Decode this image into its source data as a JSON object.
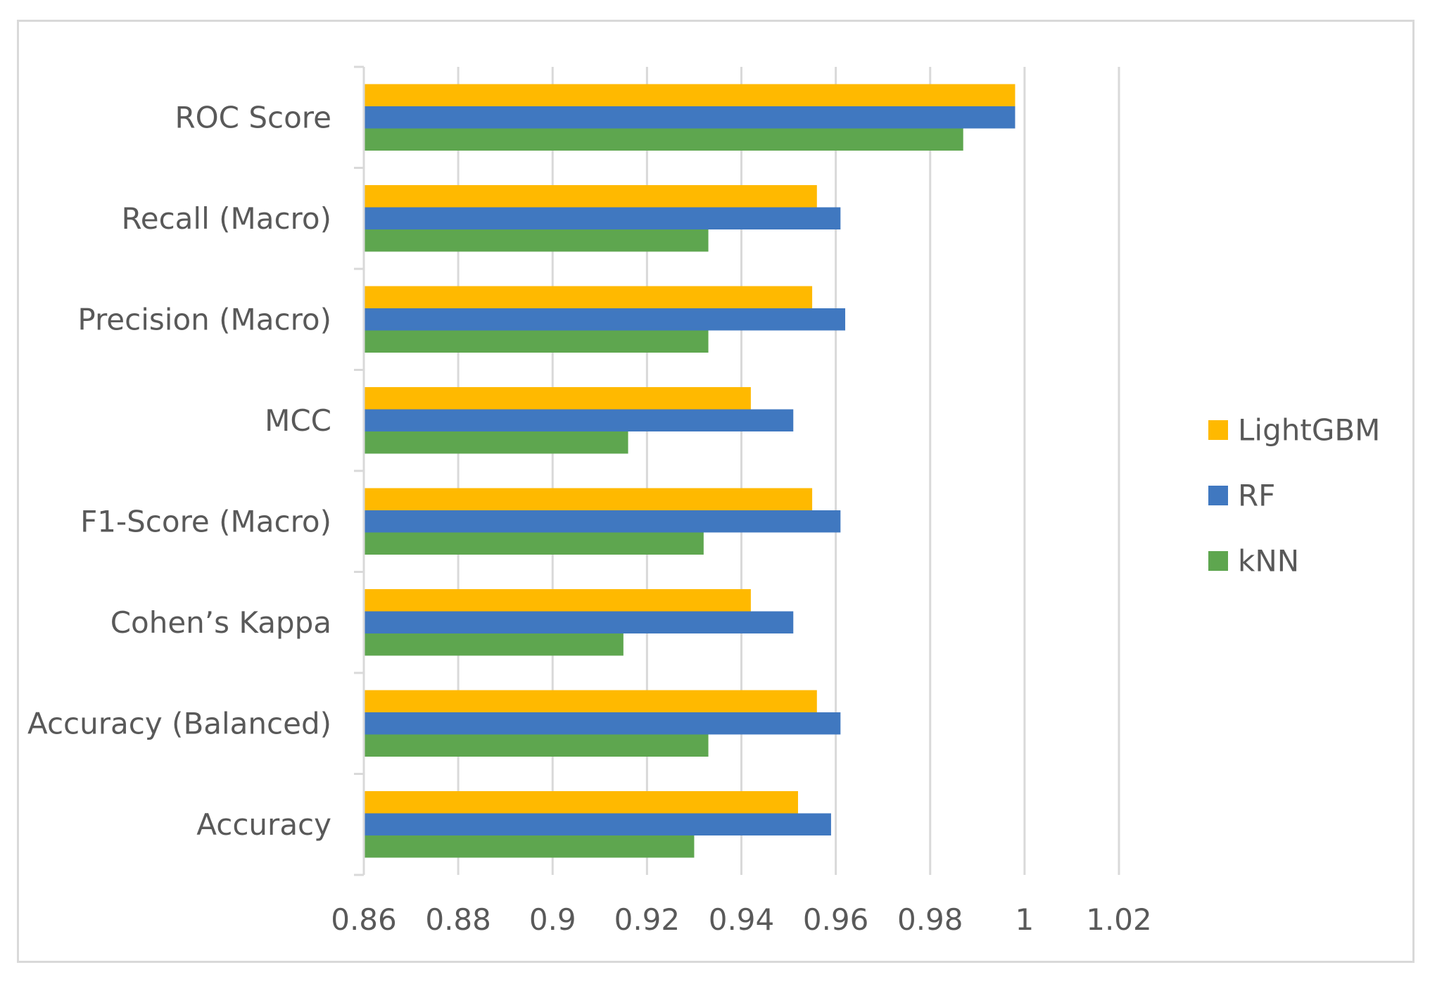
{
  "chart_data": {
    "type": "bar",
    "orientation": "horizontal",
    "categories": [
      "ROC Score",
      "Recall (Macro)",
      "Precision (Macro)",
      "MCC",
      "F1-Score (Macro)",
      "Cohen’s Kappa",
      "Accuracy (Balanced)",
      "Accuracy"
    ],
    "series": [
      {
        "name": "LightGBM",
        "color": "#ffb900",
        "values": [
          0.998,
          0.956,
          0.955,
          0.942,
          0.955,
          0.942,
          0.956,
          0.952
        ]
      },
      {
        "name": "RF",
        "color": "#4078c0",
        "values": [
          0.998,
          0.961,
          0.962,
          0.951,
          0.961,
          0.951,
          0.961,
          0.959
        ]
      },
      {
        "name": "kNN",
        "color": "#5ea64f",
        "values": [
          0.987,
          0.933,
          0.933,
          0.916,
          0.932,
          0.915,
          0.933,
          0.93
        ]
      }
    ],
    "xlim": [
      0.86,
      1.02
    ],
    "xticks": [
      0.86,
      0.88,
      0.9,
      0.92,
      0.94,
      0.96,
      0.98,
      1,
      1.02
    ],
    "xtick_labels": [
      "0.86",
      "0.88",
      "0.9",
      "0.92",
      "0.94",
      "0.96",
      "0.98",
      "1",
      "1.02"
    ],
    "title": "",
    "xlabel": "",
    "ylabel": "",
    "grid": true,
    "legend_position": "right",
    "gridline_color": "#d9d9d9"
  }
}
